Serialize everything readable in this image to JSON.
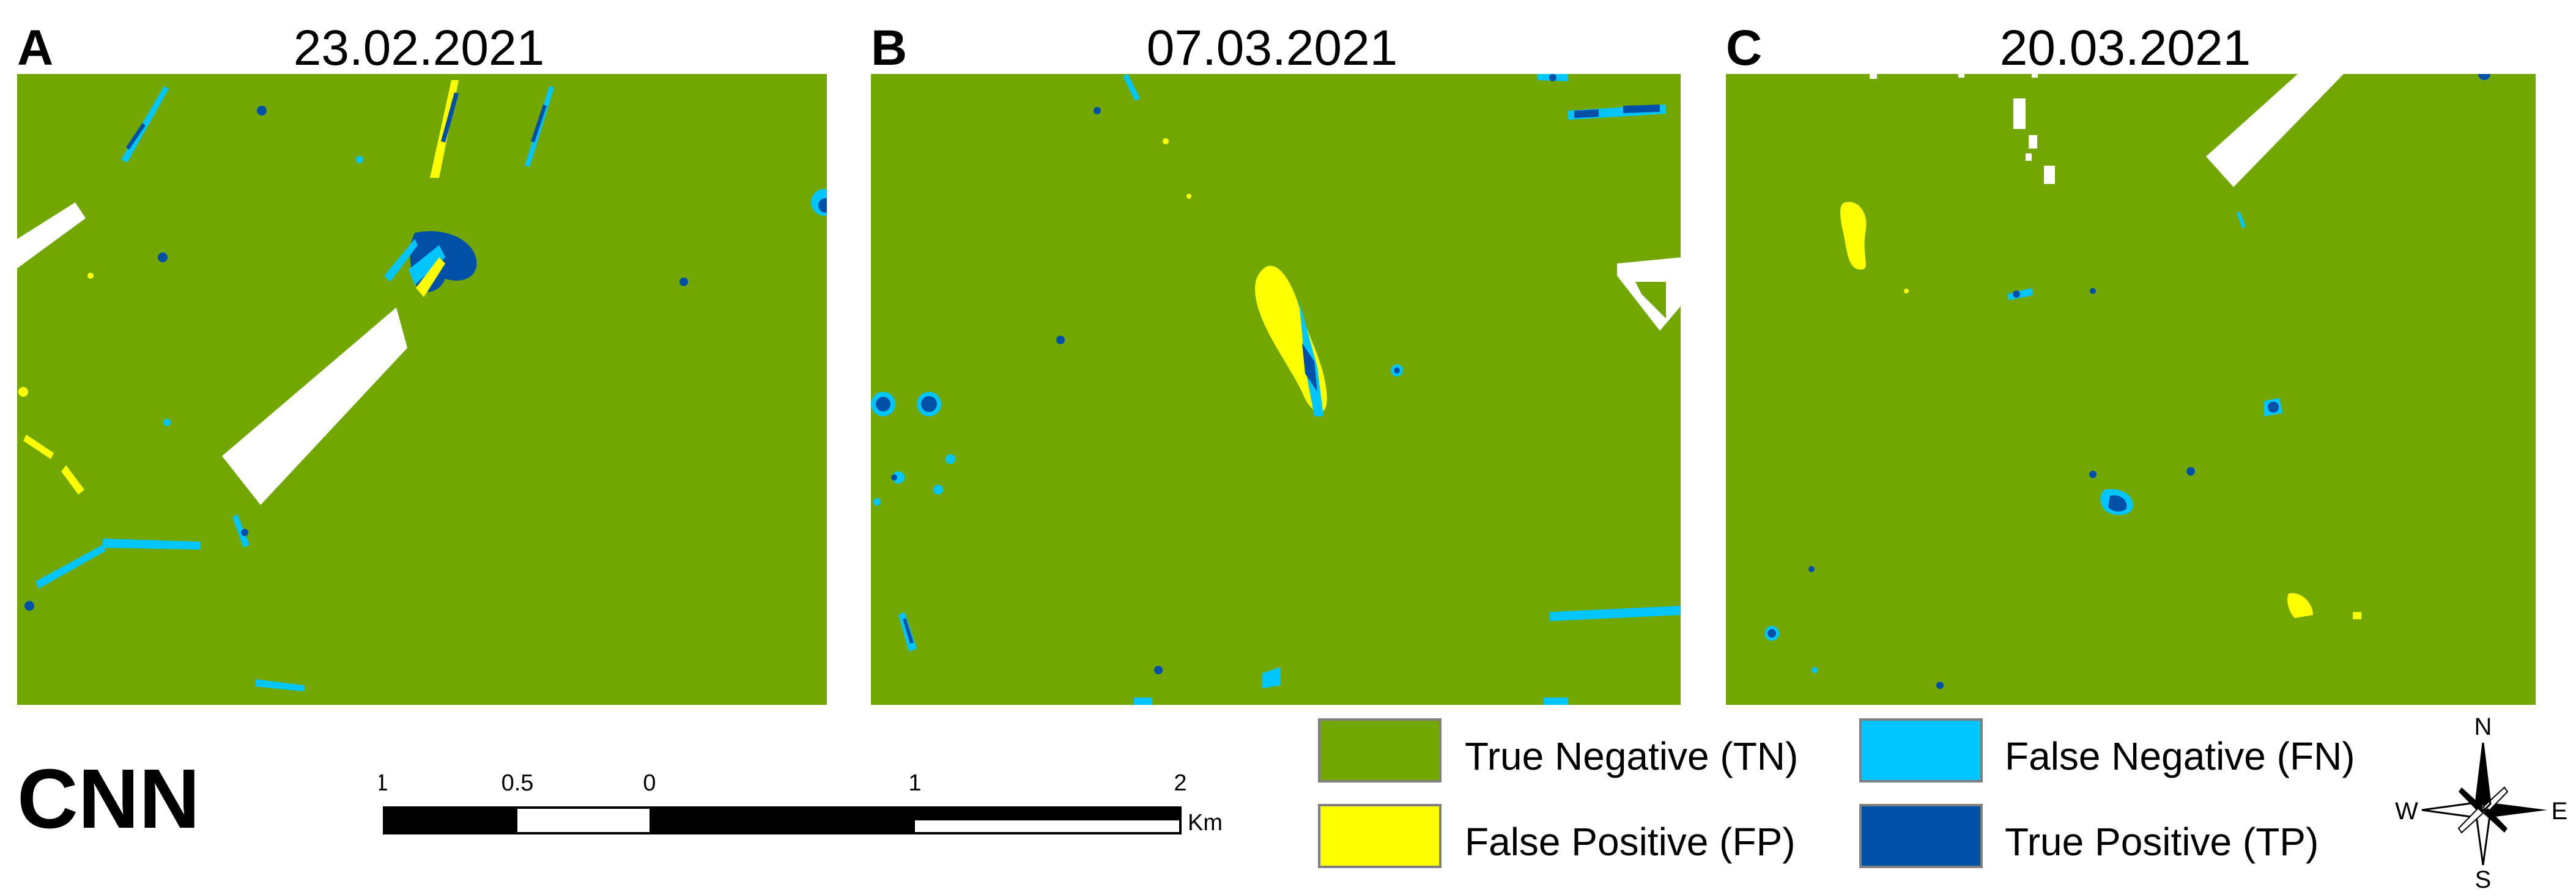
{
  "panels": [
    {
      "letter": "A",
      "date": "23.02.2021"
    },
    {
      "letter": "B",
      "date": "07.03.2021"
    },
    {
      "letter": "C",
      "date": "20.03.2021"
    }
  ],
  "model_label": "CNN",
  "scalebar": {
    "ticks": [
      "1",
      "0.5",
      "0",
      "1",
      "2"
    ],
    "unit": "Km"
  },
  "legend": [
    {
      "label": "True Negative (TN)",
      "color": "#72a600"
    },
    {
      "label": "False Negative (FN)",
      "color": "#00c5ff"
    },
    {
      "label": "False Positive (FP)",
      "color": "#ffff00"
    },
    {
      "label": "True Positive (TP)",
      "color": "#0050a8"
    }
  ],
  "compass": {
    "n": "N",
    "s": "S",
    "e": "E",
    "w": "W"
  },
  "colors": {
    "background": "#72a600",
    "no_data": "#ffffff"
  }
}
